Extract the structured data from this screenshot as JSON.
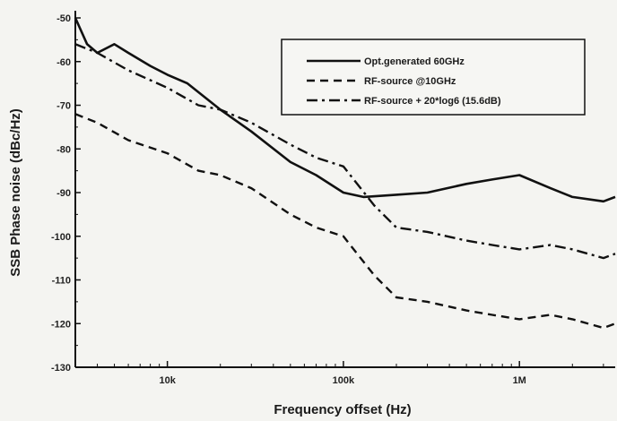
{
  "chart_data": {
    "type": "line",
    "xlabel": "Frequency offset (Hz)",
    "ylabel": "SSB Phase noise (dBc/Hz)",
    "xscale": "log",
    "xlim": [
      3000,
      3500000
    ],
    "ylim": [
      -130,
      -50
    ],
    "x_ticks": [
      10000,
      100000,
      1000000
    ],
    "x_tick_labels": [
      "10k",
      "100k",
      "1M"
    ],
    "y_ticks": [
      -50,
      -60,
      -70,
      -80,
      -90,
      -100,
      -110,
      -120,
      -130
    ],
    "y_tick_labels": [
      "-50",
      "-60",
      "-70",
      "-80",
      "-90",
      "-100",
      "-110",
      "-120",
      "-130"
    ],
    "grid": false,
    "legend_position": "top-right",
    "series": [
      {
        "name": "Opt.generated 60GHz",
        "style": "solid",
        "x": [
          3000,
          3500,
          4000,
          5000,
          6000,
          8000,
          10000,
          13000,
          20000,
          30000,
          50000,
          70000,
          100000,
          130000,
          200000,
          300000,
          500000,
          700000,
          1000000,
          1500000,
          2000000,
          3000000,
          3500000
        ],
        "y": [
          -50,
          -56,
          -58,
          -56,
          -58,
          -61,
          -63,
          -65,
          -71,
          -76,
          -83,
          -86,
          -90,
          -91,
          -90.5,
          -90,
          -88,
          -87,
          -86,
          -89,
          -91,
          -92,
          -91
        ]
      },
      {
        "name": "RF-source @10GHz",
        "style": "dashed",
        "x": [
          3000,
          4000,
          6000,
          10000,
          15000,
          20000,
          30000,
          50000,
          70000,
          100000,
          150000,
          200000,
          300000,
          500000,
          700000,
          1000000,
          1500000,
          2000000,
          3000000,
          3500000
        ],
        "y": [
          -72,
          -74,
          -78,
          -81,
          -85,
          -86,
          -89,
          -95,
          -98,
          -100,
          -109,
          -114,
          -115,
          -117,
          -118,
          -119,
          -118,
          -119,
          -121,
          -120
        ]
      },
      {
        "name": "RF-source + 20*log6 (15.6dB)",
        "style": "dashdot",
        "x": [
          3000,
          4000,
          6000,
          10000,
          15000,
          20000,
          30000,
          50000,
          70000,
          100000,
          150000,
          200000,
          300000,
          500000,
          700000,
          1000000,
          1500000,
          2000000,
          3000000,
          3500000
        ],
        "y": [
          -56,
          -58,
          -62,
          -66,
          -70,
          -71,
          -74,
          -79,
          -82,
          -84,
          -93,
          -98,
          -99,
          -101,
          -102,
          -103,
          -102,
          -103,
          -105,
          -104
        ]
      }
    ]
  }
}
